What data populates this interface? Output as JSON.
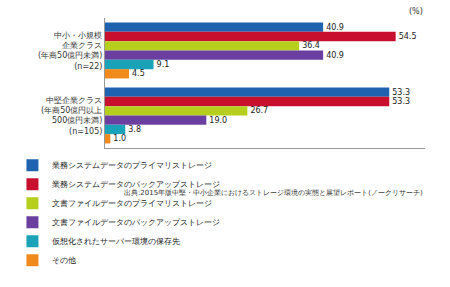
{
  "chart_data": {
    "type": "bar",
    "orientation": "horizontal",
    "categories": [
      "中小・小規模\n企業クラス\n(年商50億円未満)\n(n=22)",
      "中堅企業クラス\n(年商50億円以上\n500億円未満)\n(n=105)"
    ],
    "series": [
      {
        "name": "業務システムデータのプライマリストレージ",
        "color": "#1f63b0",
        "values": [
          40.9,
          53.3
        ],
        "value_labels": [
          "40.9",
          "53.3"
        ]
      },
      {
        "name": "業務システムデータのバックアップストレージ",
        "color": "#c8102e",
        "values": [
          54.5,
          53.3
        ],
        "value_labels": [
          "54.5",
          "53.3"
        ]
      },
      {
        "name": "文書ファイルデータのプライマリストレージ",
        "color": "#b5cf1c",
        "values": [
          36.4,
          26.7
        ],
        "value_labels": [
          "36.4",
          "26.7"
        ]
      },
      {
        "name": "文書ファイルデータのバックアップストレージ",
        "color": "#6a3fa0",
        "values": [
          40.9,
          19.0
        ],
        "value_labels": [
          "40.9",
          "19.0"
        ]
      },
      {
        "name": "仮想化されたサーバー環境の保存先",
        "color": "#1aa3b8",
        "values": [
          9.1,
          3.8
        ],
        "value_labels": [
          "9.1",
          "3.8"
        ]
      },
      {
        "name": "その他",
        "color": "#f08a1c",
        "values": [
          4.5,
          1.0
        ],
        "value_labels": [
          "4.5",
          "1.0"
        ]
      }
    ],
    "xlim": [
      0,
      60
    ],
    "xticks": [],
    "tick_labels": "y",
    "data_labels": true,
    "grid": false,
    "legend": "bottom",
    "annotations": [
      {
        "text": "(%)"
      },
      {
        "text": "出典:2015年版中堅・中小企業におけるストレージ環境の実態と展望レポート(ノークリサーチ)"
      }
    ]
  }
}
